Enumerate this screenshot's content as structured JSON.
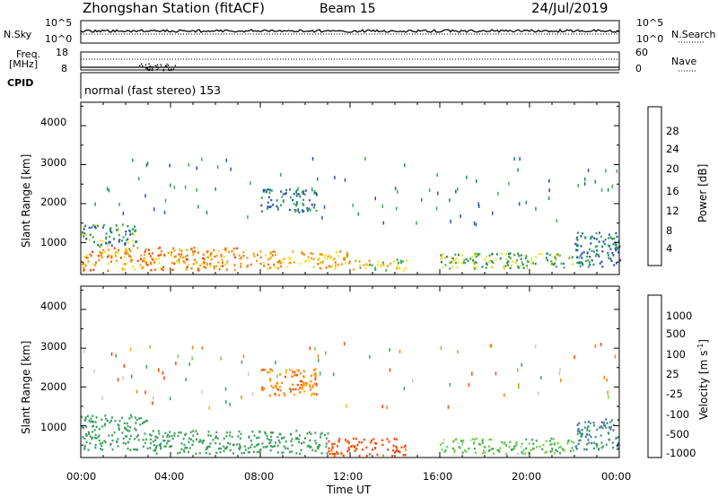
{
  "header": {
    "station": "Zhongshan Station (fitACF)",
    "beam": "Beam 15",
    "date": "24/Jul/2019"
  },
  "top_panels": {
    "nsky_label": "N.Sky",
    "nsearch_label": "N.Search",
    "ticks_left": [
      "10^5",
      "10^0"
    ],
    "ticks_right": [
      "10^5",
      "10^0"
    ],
    "freq_label_1": "Freq.",
    "freq_label_2": "[MHz]",
    "freq_ticks": [
      "18",
      "8"
    ],
    "nave_label": "Nave",
    "nave_ticks": [
      "60",
      "0"
    ],
    "cpid_label": "CPID",
    "cpid_text": "normal (fast stereo) 153"
  },
  "axes": {
    "ylabel": "Slant Range [km]",
    "xlabel": "Time UT",
    "y_ticks": [
      "4000",
      "3000",
      "2000",
      "1000"
    ],
    "x_ticks": [
      "00:00",
      "04:00",
      "08:00",
      "12:00",
      "16:00",
      "20:00",
      "00:00"
    ]
  },
  "power_scale": {
    "label": "Power [dB]",
    "ticks": [
      "28",
      "24",
      "20",
      "16",
      "12",
      "8",
      "4"
    ],
    "colors": [
      "#0000ff",
      "#2a4fb0",
      "#1f8a6e",
      "#3fa85a",
      "#f0e020",
      "#f0a000",
      "#f07000",
      "#ff3a00",
      "#ff0000"
    ]
  },
  "velocity_scale": {
    "label": "Velocity [m s",
    "label_sup": "-1",
    "label_end": "]",
    "ticks": [
      "1000",
      "500",
      "100",
      "25",
      "-25",
      "-100",
      "-500",
      "-1000"
    ],
    "colors": [
      "#ff0000",
      "#ff4000",
      "#ff8000",
      "#ffb000",
      "#c8c8c8",
      "#6cd040",
      "#3ea060",
      "#3c70b0",
      "#1c3cc0"
    ]
  },
  "chart_data": [
    {
      "type": "heatmap",
      "panel": "power",
      "xlabel": "Time UT",
      "ylabel": "Slant Range [km]",
      "x_range_hours": [
        0,
        24
      ],
      "y_range_km": [
        180,
        4600
      ],
      "colorbar": {
        "label": "Power [dB]",
        "ticks": [
          28,
          24,
          20,
          16,
          12,
          8,
          4
        ]
      },
      "regions": [
        {
          "t0": 0.0,
          "t1": 7.0,
          "r0": 300,
          "r1": 900,
          "value_db": 24
        },
        {
          "t0": 0.0,
          "t1": 2.5,
          "r0": 900,
          "r1": 1500,
          "value_db": 12
        },
        {
          "t0": 7.0,
          "t1": 12.0,
          "r0": 350,
          "r1": 800,
          "value_db": 22
        },
        {
          "t0": 12.0,
          "t1": 14.5,
          "r0": 300,
          "r1": 600,
          "value_db": 18
        },
        {
          "t0": 8.0,
          "t1": 10.5,
          "r0": 1800,
          "r1": 2400,
          "value_db": 10
        },
        {
          "t0": 16.0,
          "t1": 22.0,
          "r0": 350,
          "r1": 750,
          "value_db": 14
        },
        {
          "t0": 22.0,
          "t1": 24.0,
          "r0": 400,
          "r1": 1300,
          "value_db": 10
        }
      ]
    },
    {
      "type": "heatmap",
      "panel": "velocity",
      "xlabel": "Time UT",
      "ylabel": "Slant Range [km]",
      "x_range_hours": [
        0,
        24
      ],
      "y_range_km": [
        180,
        4600
      ],
      "colorbar": {
        "label": "Velocity [m s-1]",
        "ticks": [
          1000,
          500,
          100,
          25,
          -25,
          -100,
          -500,
          -1000
        ]
      },
      "regions": [
        {
          "t0": 0.0,
          "t1": 3.0,
          "r0": 400,
          "r1": 1300,
          "value_ms": 300
        },
        {
          "t0": 3.0,
          "t1": 11.0,
          "r0": 300,
          "r1": 900,
          "value_ms": 200
        },
        {
          "t0": 11.0,
          "t1": 14.5,
          "r0": 250,
          "r1": 700,
          "value_ms": -150
        },
        {
          "t0": 8.0,
          "t1": 10.5,
          "r0": 1800,
          "r1": 2500,
          "value_ms": -60
        },
        {
          "t0": 16.0,
          "t1": 22.0,
          "r0": 300,
          "r1": 700,
          "value_ms": 80
        },
        {
          "t0": 22.0,
          "t1": 24.0,
          "r0": 400,
          "r1": 1200,
          "value_ms": 500
        }
      ]
    }
  ]
}
